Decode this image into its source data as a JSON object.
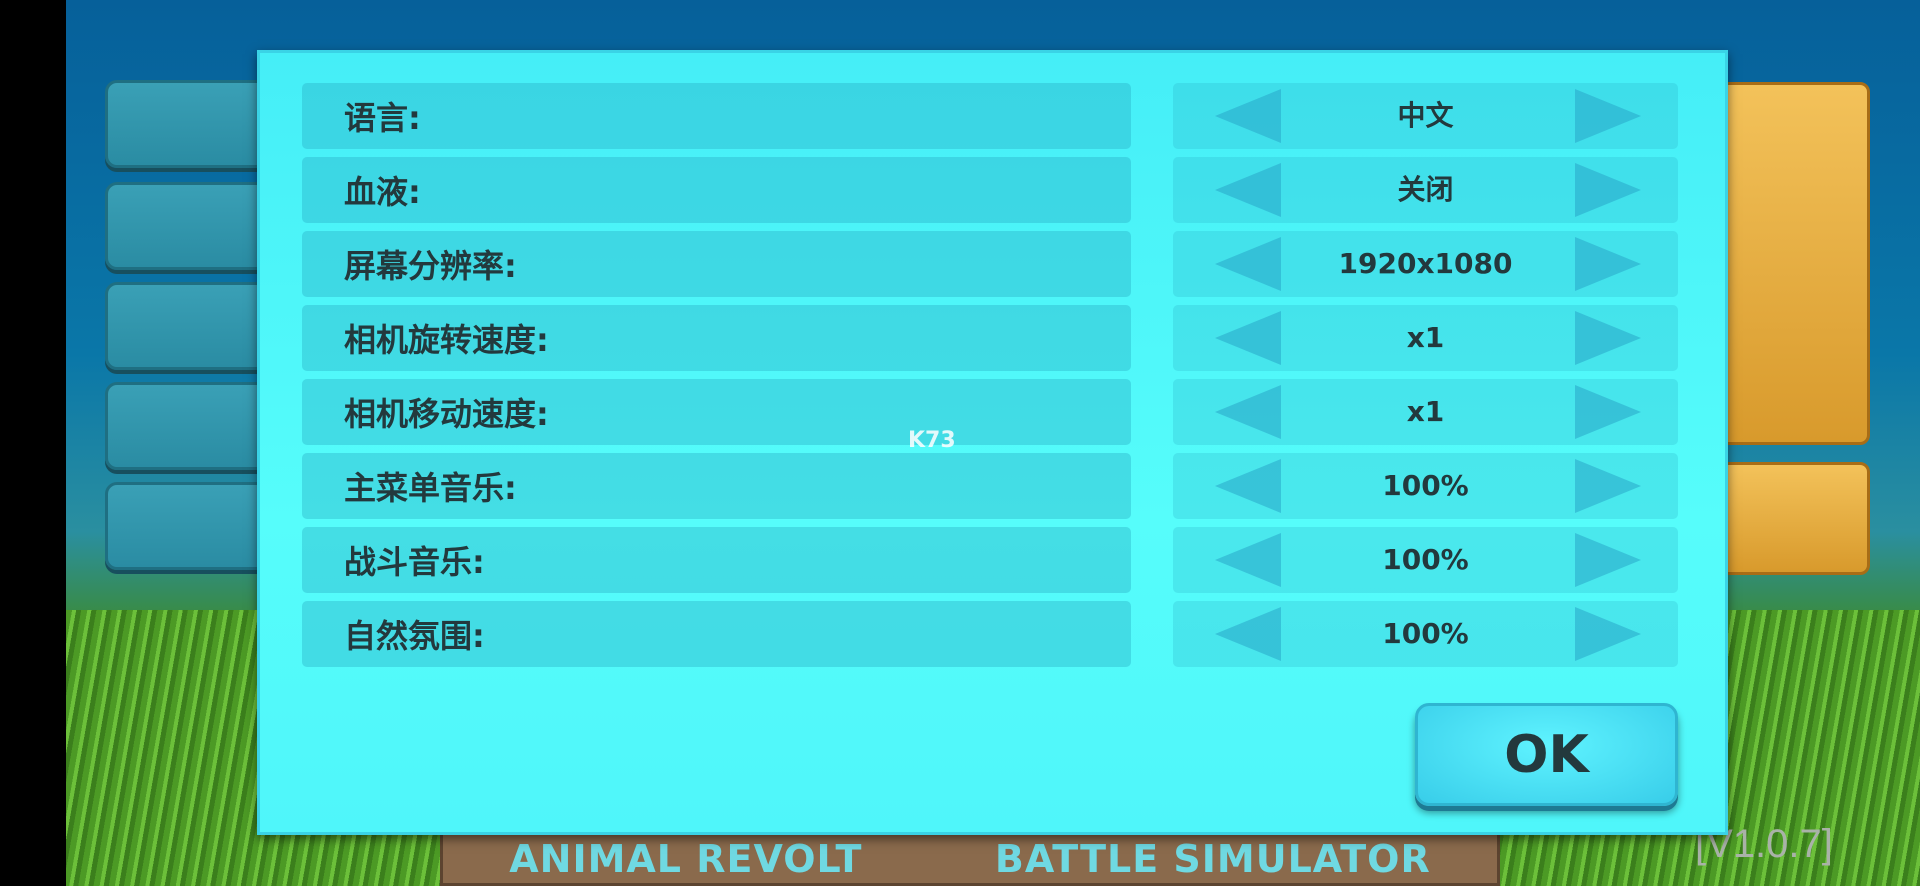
{
  "settings": [
    {
      "label": "语言:",
      "value": "中文"
    },
    {
      "label": "血液:",
      "value": "关闭"
    },
    {
      "label": "屏幕分辨率:",
      "value": "1920x1080"
    },
    {
      "label": "相机旋转速度:",
      "value": "x1"
    },
    {
      "label": "相机移动速度:",
      "value": "x1"
    },
    {
      "label": "主菜单音乐:",
      "value": "100%"
    },
    {
      "label": "战斗音乐:",
      "value": "100%"
    },
    {
      "label": "自然氛围:",
      "value": "100%"
    }
  ],
  "ok_label": "OK",
  "background": {
    "logo_left": "ANIMAL REVOLT",
    "logo_right": "BATTLE SIMULATOR",
    "version": "[V1.0.7]"
  },
  "watermark": "K73",
  "colors": {
    "dialog": "#56fdfb",
    "text": "#23393d"
  }
}
